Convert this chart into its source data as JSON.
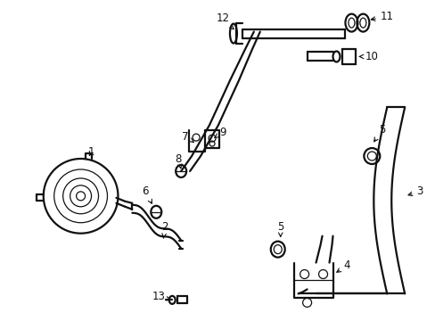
{
  "background_color": "#ffffff",
  "line_color": "#111111",
  "label_color": "#000000",
  "fig_width": 4.89,
  "fig_height": 3.6,
  "dpi": 100,
  "label_fontsize": 8.5,
  "lw_main": 1.6,
  "lw_thick": 2.8,
  "lw_thin": 0.9
}
